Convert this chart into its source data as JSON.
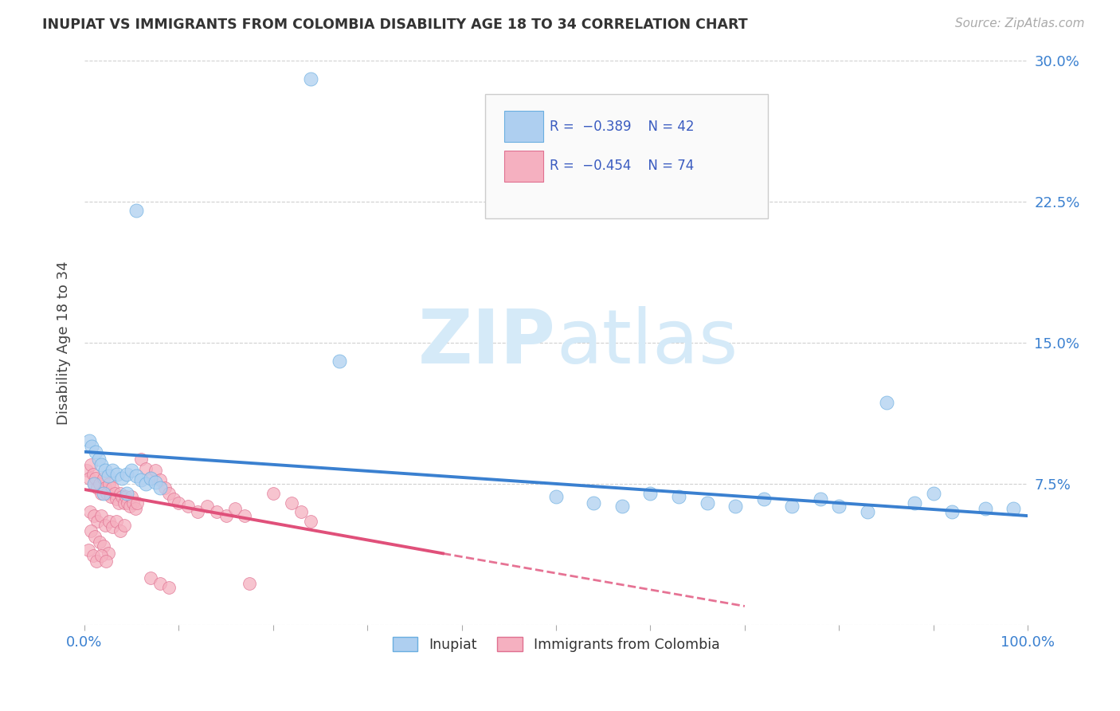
{
  "title": "INUPIAT VS IMMIGRANTS FROM COLOMBIA DISABILITY AGE 18 TO 34 CORRELATION CHART",
  "source": "Source: ZipAtlas.com",
  "ylabel": "Disability Age 18 to 34",
  "xlim": [
    0,
    1.0
  ],
  "ylim": [
    0,
    0.3
  ],
  "background_color": "#ffffff",
  "grid_color": "#d0d0d0",
  "inupiat_color": "#aecff0",
  "colombia_color": "#f5b0c0",
  "inupiat_edge_color": "#6aaee0",
  "colombia_edge_color": "#e07090",
  "inupiat_line_color": "#3a80d0",
  "colombia_line_color": "#e0507a",
  "legend_text_color": "#3a5bc0",
  "watermark_color": "#d5eaf8",
  "inupiat_points": [
    [
      0.005,
      0.098
    ],
    [
      0.008,
      0.095
    ],
    [
      0.012,
      0.092
    ],
    [
      0.015,
      0.088
    ],
    [
      0.018,
      0.085
    ],
    [
      0.022,
      0.082
    ],
    [
      0.025,
      0.079
    ],
    [
      0.01,
      0.075
    ],
    [
      0.03,
      0.082
    ],
    [
      0.035,
      0.08
    ],
    [
      0.04,
      0.078
    ],
    [
      0.045,
      0.08
    ],
    [
      0.05,
      0.082
    ],
    [
      0.055,
      0.079
    ],
    [
      0.06,
      0.077
    ],
    [
      0.065,
      0.075
    ],
    [
      0.07,
      0.078
    ],
    [
      0.075,
      0.076
    ],
    [
      0.08,
      0.073
    ],
    [
      0.02,
      0.07
    ],
    [
      0.045,
      0.07
    ],
    [
      0.055,
      0.22
    ],
    [
      0.24,
      0.29
    ],
    [
      0.27,
      0.14
    ],
    [
      0.5,
      0.068
    ],
    [
      0.54,
      0.065
    ],
    [
      0.57,
      0.063
    ],
    [
      0.6,
      0.07
    ],
    [
      0.63,
      0.068
    ],
    [
      0.66,
      0.065
    ],
    [
      0.69,
      0.063
    ],
    [
      0.72,
      0.067
    ],
    [
      0.75,
      0.063
    ],
    [
      0.78,
      0.067
    ],
    [
      0.8,
      0.063
    ],
    [
      0.83,
      0.06
    ],
    [
      0.85,
      0.118
    ],
    [
      0.88,
      0.065
    ],
    [
      0.9,
      0.07
    ],
    [
      0.92,
      0.06
    ],
    [
      0.955,
      0.062
    ],
    [
      0.985,
      0.062
    ]
  ],
  "colombia_points": [
    [
      0.003,
      0.082
    ],
    [
      0.005,
      0.078
    ],
    [
      0.007,
      0.085
    ],
    [
      0.009,
      0.08
    ],
    [
      0.01,
      0.075
    ],
    [
      0.012,
      0.078
    ],
    [
      0.014,
      0.073
    ],
    [
      0.016,
      0.075
    ],
    [
      0.018,
      0.07
    ],
    [
      0.02,
      0.078
    ],
    [
      0.022,
      0.073
    ],
    [
      0.024,
      0.07
    ],
    [
      0.026,
      0.075
    ],
    [
      0.028,
      0.068
    ],
    [
      0.03,
      0.073
    ],
    [
      0.032,
      0.07
    ],
    [
      0.034,
      0.067
    ],
    [
      0.036,
      0.065
    ],
    [
      0.038,
      0.07
    ],
    [
      0.04,
      0.068
    ],
    [
      0.042,
      0.065
    ],
    [
      0.044,
      0.068
    ],
    [
      0.046,
      0.065
    ],
    [
      0.048,
      0.063
    ],
    [
      0.05,
      0.068
    ],
    [
      0.052,
      0.065
    ],
    [
      0.054,
      0.062
    ],
    [
      0.056,
      0.065
    ],
    [
      0.006,
      0.06
    ],
    [
      0.01,
      0.058
    ],
    [
      0.014,
      0.055
    ],
    [
      0.018,
      0.058
    ],
    [
      0.022,
      0.053
    ],
    [
      0.026,
      0.055
    ],
    [
      0.03,
      0.052
    ],
    [
      0.034,
      0.055
    ],
    [
      0.038,
      0.05
    ],
    [
      0.042,
      0.053
    ],
    [
      0.007,
      0.05
    ],
    [
      0.011,
      0.047
    ],
    [
      0.016,
      0.044
    ],
    [
      0.02,
      0.042
    ],
    [
      0.025,
      0.038
    ],
    [
      0.004,
      0.04
    ],
    [
      0.009,
      0.037
    ],
    [
      0.013,
      0.034
    ],
    [
      0.018,
      0.037
    ],
    [
      0.023,
      0.034
    ],
    [
      0.06,
      0.088
    ],
    [
      0.065,
      0.083
    ],
    [
      0.07,
      0.078
    ],
    [
      0.075,
      0.082
    ],
    [
      0.08,
      0.077
    ],
    [
      0.085,
      0.073
    ],
    [
      0.09,
      0.07
    ],
    [
      0.095,
      0.067
    ],
    [
      0.1,
      0.065
    ],
    [
      0.11,
      0.063
    ],
    [
      0.12,
      0.06
    ],
    [
      0.13,
      0.063
    ],
    [
      0.14,
      0.06
    ],
    [
      0.15,
      0.058
    ],
    [
      0.16,
      0.062
    ],
    [
      0.17,
      0.058
    ],
    [
      0.2,
      0.07
    ],
    [
      0.22,
      0.065
    ],
    [
      0.23,
      0.06
    ],
    [
      0.24,
      0.055
    ],
    [
      0.07,
      0.025
    ],
    [
      0.08,
      0.022
    ],
    [
      0.09,
      0.02
    ],
    [
      0.175,
      0.022
    ]
  ],
  "inupiat_line": [
    0.0,
    0.092,
    1.0,
    0.058
  ],
  "colombia_line_solid": [
    0.0,
    0.072,
    0.38,
    0.038
  ],
  "colombia_line_dash": [
    0.38,
    0.038,
    0.7,
    0.01
  ]
}
